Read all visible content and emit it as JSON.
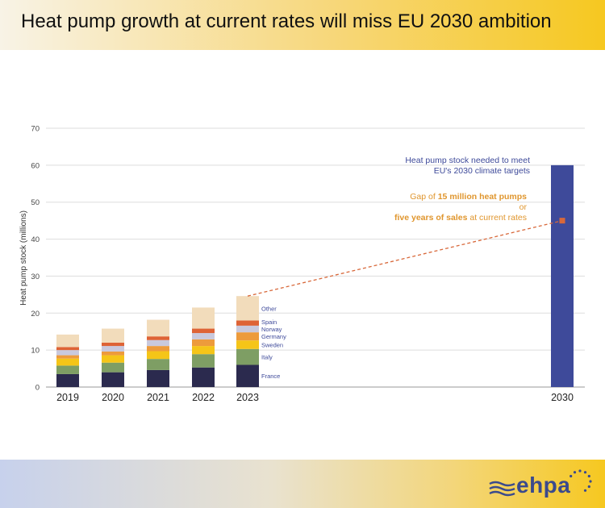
{
  "header": {
    "title": "Heat pump growth at current rates will miss EU 2030 ambition"
  },
  "logo": {
    "text": "ehpa"
  },
  "colors": {
    "France": "#2b2a4e",
    "Italy": "#7e9e64",
    "Sweden": "#f5c518",
    "Germany": "#ed9b3c",
    "Norway": "#c9c9dd",
    "Spain": "#de6336",
    "Other": "#f2dcbb",
    "target_bar": "#3e4a9a",
    "annotation_blue": "#3e4a9a",
    "annotation_orange": "#e0962e",
    "trend_line": "#d8683a",
    "grid": "#dddddd",
    "logo_blue": "#3b4a8c"
  },
  "chart_data": {
    "type": "bar",
    "stacked": true,
    "ylabel": "Heat pump stock (millions)",
    "ylim": [
      0,
      70
    ],
    "yticks": [
      0,
      10,
      20,
      30,
      40,
      50,
      60,
      70
    ],
    "grid": true,
    "categories": [
      "2019",
      "2020",
      "2021",
      "2022",
      "2023"
    ],
    "series": [
      {
        "name": "France",
        "values": [
          3.5,
          4.0,
          4.6,
          5.3,
          6.0
        ]
      },
      {
        "name": "Italy",
        "values": [
          2.3,
          2.6,
          3.0,
          3.6,
          4.3
        ]
      },
      {
        "name": "Sweden",
        "values": [
          1.9,
          2.0,
          2.1,
          2.2,
          2.3
        ]
      },
      {
        "name": "Germany",
        "values": [
          0.9,
          1.0,
          1.4,
          1.8,
          2.2
        ]
      },
      {
        "name": "Norway",
        "values": [
          1.4,
          1.5,
          1.6,
          1.7,
          1.8
        ]
      },
      {
        "name": "Spain",
        "values": [
          0.8,
          0.9,
          1.0,
          1.2,
          1.4
        ]
      },
      {
        "name": "Other",
        "values": [
          3.4,
          3.8,
          4.5,
          5.7,
          6.6
        ]
      }
    ],
    "target": {
      "category": "2030",
      "value": 60
    },
    "trend": {
      "from": {
        "x": "2023",
        "y": 24.6
      },
      "to": {
        "x": "2030",
        "y": 45
      }
    },
    "annotations": {
      "target_line1": "Heat pump stock needed to meet",
      "target_line2": "EU's 2030 climate targets",
      "gap_line1_pre": "Gap of ",
      "gap_line1_bold": "15 million heat pumps",
      "gap_line2": "or",
      "gap_line3_bold": "five years of sales",
      "gap_line3_post": " at current rates"
    }
  }
}
